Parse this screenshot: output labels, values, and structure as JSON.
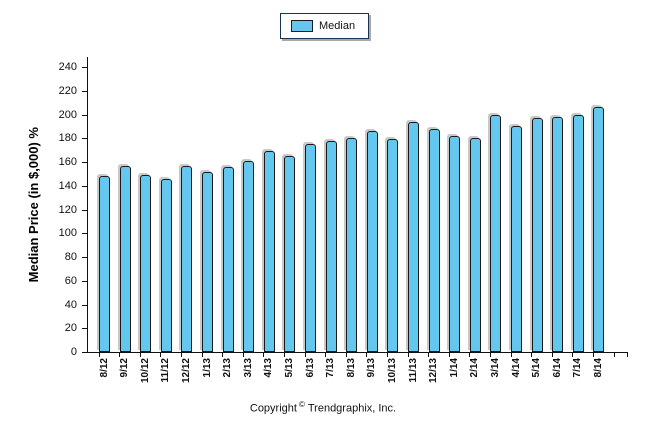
{
  "legend": {
    "position": "top-center"
  },
  "footer": {
    "pre": "Copyright",
    "symbol": "©",
    "post": "Trendgraphix, Inc."
  },
  "colors": {
    "bar_fill": "#64C7F0",
    "bar_border": "#1a1a1a",
    "bar_shadow": "#c9c9c9",
    "axis": "#111111",
    "legend_border": "#1a3353",
    "legend_shadow": "#a9a9a9",
    "background": "#ffffff"
  },
  "chart_data": {
    "type": "bar",
    "title": "",
    "xlabel": "",
    "ylabel": "Median Price (in $,000) %",
    "categories": [
      "8/12",
      "9/12",
      "10/12",
      "11/12",
      "12/12",
      "1/13",
      "2/13",
      "3/13",
      "4/13",
      "5/13",
      "6/13",
      "7/13",
      "8/13",
      "9/13",
      "10/13",
      "11/13",
      "12/13",
      "1/14",
      "2/14",
      "3/14",
      "4/14",
      "5/14",
      "6/14",
      "7/14",
      "8/14"
    ],
    "series": [
      {
        "name": "Median",
        "values": [
          148,
          157,
          149,
          146,
          157,
          152,
          156,
          161,
          169,
          165,
          175,
          178,
          180,
          186,
          179,
          194,
          188,
          182,
          180,
          200,
          190,
          197,
          198,
          200,
          206
        ]
      }
    ],
    "yticks": [
      0,
      20,
      40,
      60,
      80,
      100,
      120,
      140,
      160,
      180,
      200,
      220,
      240
    ],
    "ylim": [
      0,
      250
    ],
    "grid": false,
    "legend_position": "top-center",
    "footer_text": "Copyright © Trendgraphix, Inc."
  }
}
